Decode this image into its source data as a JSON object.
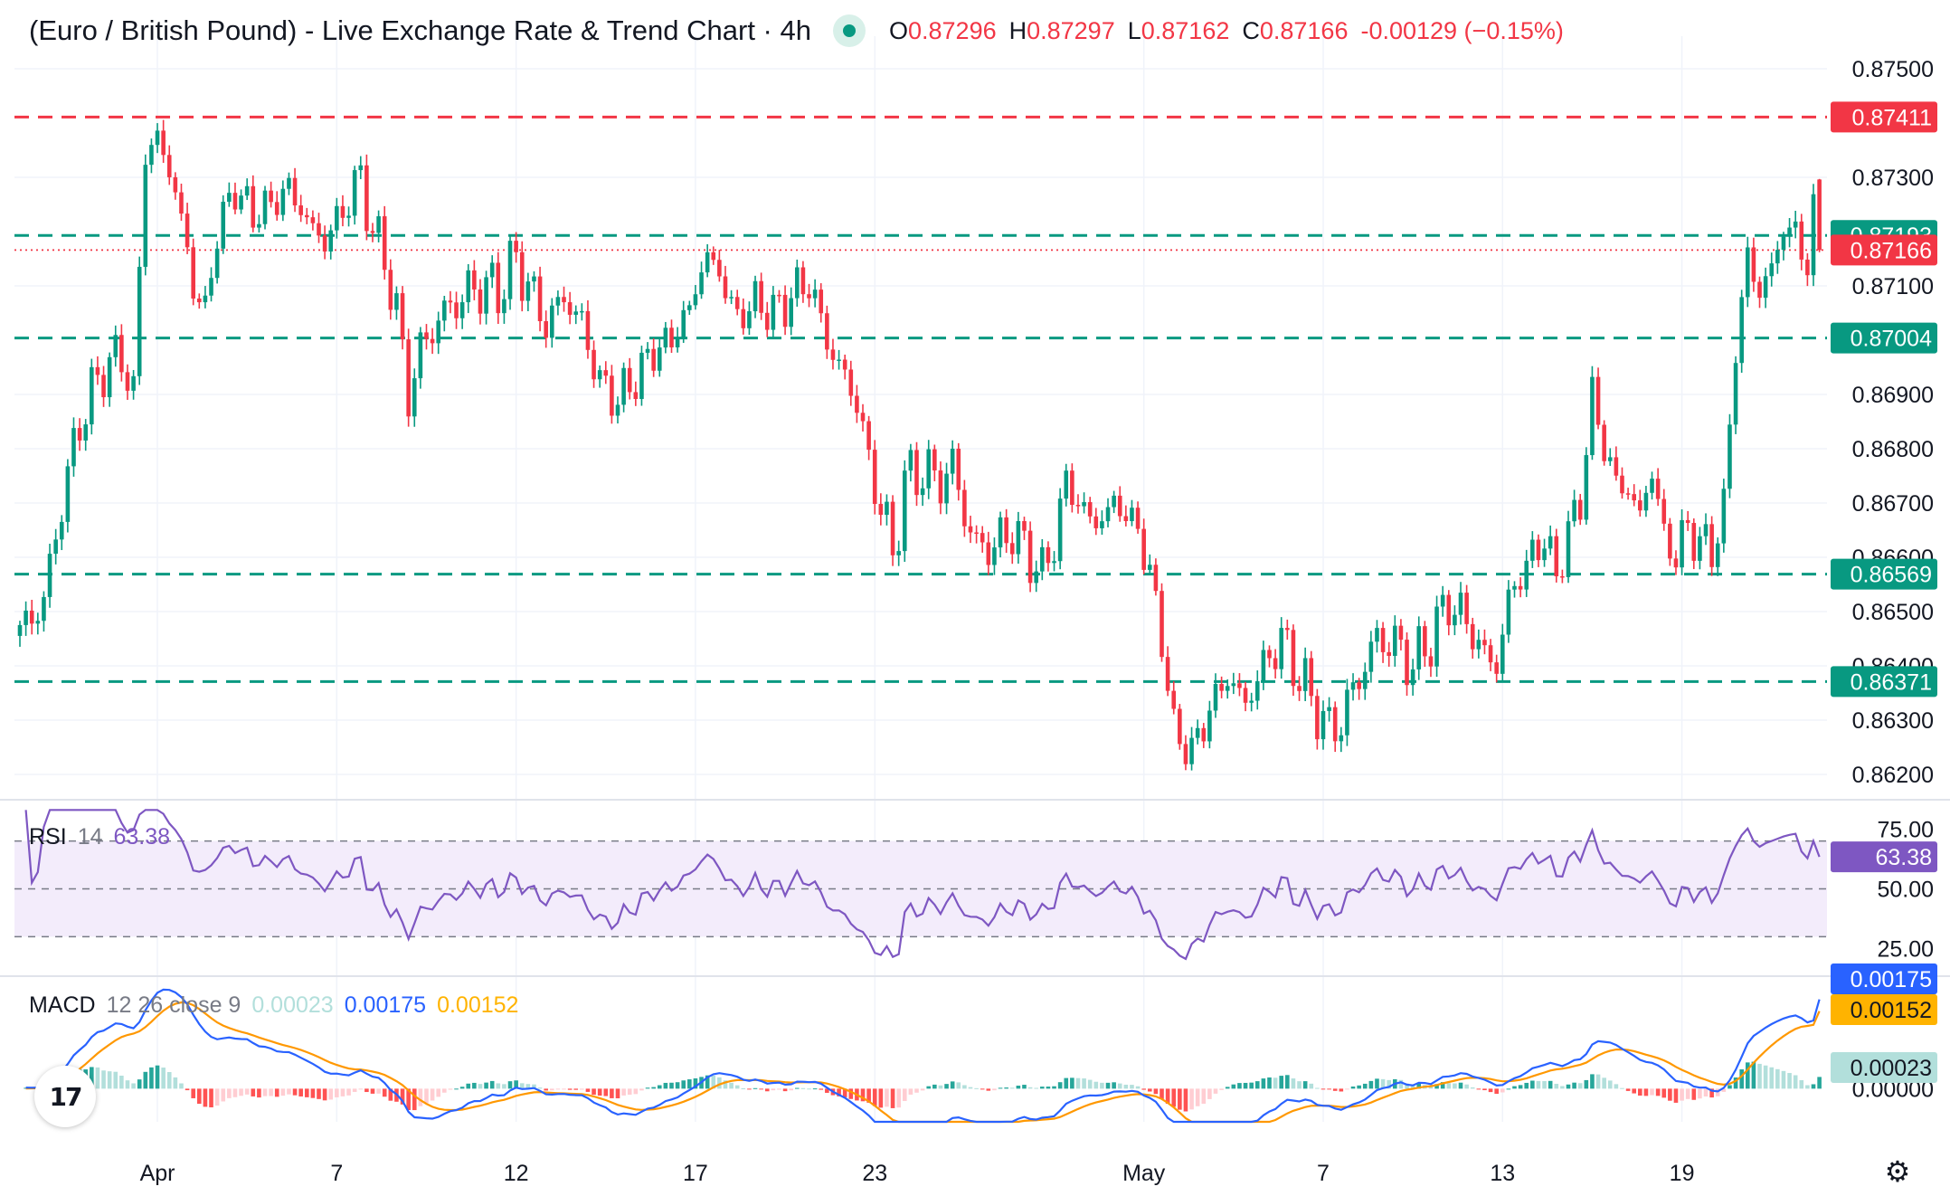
{
  "header": {
    "title": "(Euro / British Pound) - Live Exchange Rate & Trend Chart · 4h",
    "open_key": "O",
    "open": "0.87296",
    "high_key": "H",
    "high": "0.87297",
    "low_key": "L",
    "low": "0.87162",
    "close_key": "C",
    "close": "0.87166",
    "change": "-0.00129 (−0.15%)"
  },
  "colors": {
    "up": "#089981",
    "down": "#f23645",
    "rsi": "#7e57c2",
    "rsi_band": "#f3ecfb",
    "macd": "#2962ff",
    "signal": "#ff9800",
    "hist_up_strong": "#26a69a",
    "hist_up_weak": "#b2dfdb",
    "hist_down_strong": "#ff5252",
    "hist_down_weak": "#ffcdd2",
    "grid": "#f0f3fa"
  },
  "rsi_label": {
    "name": "RSI",
    "period": "14",
    "value": "63.38"
  },
  "macd_label": {
    "name": "MACD",
    "params": "12 26 close 9",
    "hist": "0.00023",
    "macd": "0.00175",
    "signal": "0.00152"
  },
  "chart_data": {
    "type": "candlestick",
    "timeframe": "4h",
    "ylim": [
      0.8616,
      0.8756
    ],
    "price_ticks": [
      "0.87500",
      "0.87300",
      "0.87100",
      "0.86900",
      "0.86800",
      "0.86700",
      "0.86600",
      "0.86500",
      "0.86400",
      "0.86300",
      "0.86200"
    ],
    "x_ticks": [
      {
        "label": "Apr",
        "bar": 23
      },
      {
        "label": "7",
        "bar": 53
      },
      {
        "label": "12",
        "bar": 83
      },
      {
        "label": "17",
        "bar": 113
      },
      {
        "label": "23",
        "bar": 143
      },
      {
        "label": "May",
        "bar": 188
      },
      {
        "label": "7",
        "bar": 218
      },
      {
        "label": "13",
        "bar": 248
      },
      {
        "label": "19",
        "bar": 278
      }
    ],
    "levels": [
      {
        "value": 0.87411,
        "label": "0.87411",
        "color": "#f23645",
        "style": "dashed"
      },
      {
        "value": 0.87193,
        "label": "0.87193",
        "color": "#089981",
        "style": "dashed"
      },
      {
        "value": 0.87166,
        "label": "0.87166",
        "color": "#f23645",
        "style": "dotted"
      },
      {
        "value": 0.87004,
        "label": "0.87004",
        "color": "#089981",
        "style": "dashed"
      },
      {
        "value": 0.86569,
        "label": "0.86569",
        "color": "#089981",
        "style": "dashed"
      },
      {
        "value": 0.86371,
        "label": "0.86371",
        "color": "#089981",
        "style": "dashed"
      }
    ],
    "anchors": [
      [
        0,
        0.8646
      ],
      [
        4,
        0.8652
      ],
      [
        7,
        0.867
      ],
      [
        10,
        0.8685
      ],
      [
        14,
        0.8695
      ],
      [
        17,
        0.8697
      ],
      [
        19,
        0.869
      ],
      [
        21,
        0.8735
      ],
      [
        23,
        0.8737
      ],
      [
        26,
        0.8728
      ],
      [
        29,
        0.871
      ],
      [
        31,
        0.8705
      ],
      [
        33,
        0.872
      ],
      [
        36,
        0.8728
      ],
      [
        39,
        0.8723
      ],
      [
        42,
        0.8725
      ],
      [
        45,
        0.8728
      ],
      [
        48,
        0.8722
      ],
      [
        51,
        0.8718
      ],
      [
        54,
        0.8724
      ],
      [
        57,
        0.873
      ],
      [
        59,
        0.872
      ],
      [
        61,
        0.8715
      ],
      [
        63,
        0.8705
      ],
      [
        65,
        0.869
      ],
      [
        67,
        0.8698
      ],
      [
        70,
        0.8704
      ],
      [
        74,
        0.8708
      ],
      [
        77,
        0.871
      ],
      [
        80,
        0.8709
      ],
      [
        83,
        0.8715
      ],
      [
        85,
        0.871
      ],
      [
        88,
        0.8703
      ],
      [
        91,
        0.8708
      ],
      [
        94,
        0.8703
      ],
      [
        97,
        0.8692
      ],
      [
        100,
        0.8689
      ],
      [
        103,
        0.8693
      ],
      [
        106,
        0.8698
      ],
      [
        109,
        0.87
      ],
      [
        112,
        0.8706
      ],
      [
        115,
        0.8716
      ],
      [
        117,
        0.8712
      ],
      [
        120,
        0.8704
      ],
      [
        123,
        0.8707
      ],
      [
        126,
        0.8705
      ],
      [
        129,
        0.8708
      ],
      [
        132,
        0.8711
      ],
      [
        134,
        0.8703
      ],
      [
        137,
        0.8695
      ],
      [
        140,
        0.8689
      ],
      [
        142,
        0.8677
      ],
      [
        144,
        0.867
      ],
      [
        146,
        0.866
      ],
      [
        148,
        0.8674
      ],
      [
        151,
        0.8676
      ],
      [
        154,
        0.8674
      ],
      [
        156,
        0.8677
      ],
      [
        158,
        0.8668
      ],
      [
        160,
        0.8662
      ],
      [
        163,
        0.8662
      ],
      [
        166,
        0.8665
      ],
      [
        169,
        0.866
      ],
      [
        171,
        0.8657
      ],
      [
        173,
        0.8663
      ],
      [
        175,
        0.8674
      ],
      [
        177,
        0.867
      ],
      [
        180,
        0.8666
      ],
      [
        183,
        0.867
      ],
      [
        185,
        0.8668
      ],
      [
        187,
        0.8665
      ],
      [
        189,
        0.8657
      ],
      [
        191,
        0.8645
      ],
      [
        193,
        0.8628
      ],
      [
        196,
        0.8624
      ],
      [
        199,
        0.8632
      ],
      [
        202,
        0.8638
      ],
      [
        205,
        0.8633
      ],
      [
        208,
        0.864
      ],
      [
        211,
        0.8645
      ],
      [
        214,
        0.8638
      ],
      [
        217,
        0.8632
      ],
      [
        219,
        0.8628
      ],
      [
        221,
        0.863
      ],
      [
        224,
        0.8638
      ],
      [
        227,
        0.8645
      ],
      [
        230,
        0.8644
      ],
      [
        233,
        0.864
      ],
      [
        236,
        0.8645
      ],
      [
        239,
        0.8652
      ],
      [
        242,
        0.8648
      ],
      [
        245,
        0.8642
      ],
      [
        247,
        0.864
      ],
      [
        249,
        0.8652
      ],
      [
        251,
        0.8657
      ],
      [
        253,
        0.866
      ],
      [
        255,
        0.8664
      ],
      [
        257,
        0.8656
      ],
      [
        259,
        0.8665
      ],
      [
        261,
        0.867
      ],
      [
        263,
        0.869
      ],
      [
        265,
        0.868
      ],
      [
        267,
        0.8674
      ],
      [
        269,
        0.8672
      ],
      [
        271,
        0.8668
      ],
      [
        273,
        0.8676
      ],
      [
        275,
        0.8664
      ],
      [
        277,
        0.866
      ],
      [
        279,
        0.8666
      ],
      [
        281,
        0.8662
      ],
      [
        283,
        0.8662
      ],
      [
        285,
        0.8668
      ],
      [
        287,
        0.87
      ],
      [
        289,
        0.8714
      ],
      [
        291,
        0.871
      ],
      [
        293,
        0.8712
      ],
      [
        295,
        0.8722
      ],
      [
        297,
        0.8718
      ],
      [
        299,
        0.8716
      ],
      [
        301,
        0.87296
      ]
    ],
    "last_bar": {
      "open": 0.87296,
      "high": 0.87297,
      "low": 0.87162,
      "close": 0.87166
    },
    "rsi": {
      "ylim": [
        15,
        85
      ],
      "ticks": [
        "75.00",
        "50.00",
        "25.00"
      ],
      "band": [
        30,
        70
      ],
      "mid": 50,
      "last": 63.38,
      "last_label": "63.38"
    },
    "macd": {
      "ylim": [
        -0.00065,
        0.0021
      ],
      "last_macd": 0.00175,
      "last_signal": 0.00152,
      "last_hist": 0.00023,
      "macd_label": "0.00175",
      "signal_label": "0.00152",
      "hist_label": "0.00023",
      "zero_label": "0.00000"
    }
  }
}
